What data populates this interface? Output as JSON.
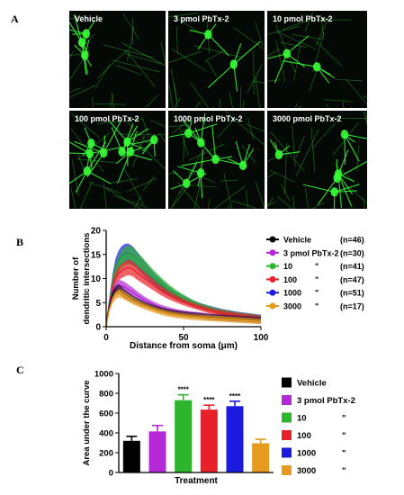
{
  "figure": {
    "panel_a": "A",
    "panel_b": "B",
    "panel_c": "C"
  },
  "micrographs": [
    "Vehicle",
    "3 pmol PbTx-2",
    "10 pmol PbTx-2",
    "100 pmol PbTx-2",
    "1000 pmol PbTx-2",
    "3000 pmol PbTx-2"
  ],
  "colors": {
    "vehicle": "#000000",
    "p3": "#b428d8",
    "p10": "#2db52d",
    "p100": "#e8202a",
    "p1000": "#1b1be0",
    "p3000": "#e69a1e",
    "neuron": "#38ff38"
  },
  "chart_data": [
    {
      "type": "line",
      "xlabel": "Distance from soma (μm)",
      "ylabel": "Number of dendritic intersections",
      "xlim": [
        0,
        100
      ],
      "ylim": [
        0,
        20
      ],
      "xticks": [
        "0",
        "50",
        "100"
      ],
      "yticks": [
        "0",
        "5",
        "10",
        "15",
        "20"
      ],
      "x": [
        0,
        2,
        4,
        6,
        8,
        10,
        12,
        14,
        16,
        18,
        20,
        25,
        30,
        35,
        40,
        45,
        50,
        55,
        60,
        65,
        70,
        75,
        80,
        85,
        90,
        95,
        100
      ],
      "series": [
        {
          "name": "Vehicle",
          "n": "(n=46)",
          "values": [
            0,
            4,
            6.5,
            7.5,
            7.8,
            7.4,
            6.8,
            6.4,
            6,
            5.6,
            5.3,
            4.6,
            4,
            3.5,
            3.1,
            2.8,
            2.6,
            2.4,
            2.3,
            2.1,
            2,
            1.9,
            1.8,
            1.7,
            1.6,
            1.5,
            1.4
          ]
        },
        {
          "name": "3 pmol PbTx-2",
          "n": "(n=30)",
          "values": [
            0,
            4.5,
            7,
            8,
            8.6,
            8.5,
            8.2,
            7.8,
            7.4,
            7,
            6.5,
            5.5,
            4.7,
            4,
            3.5,
            3.1,
            2.8,
            2.6,
            2.4,
            2.2,
            2,
            1.9,
            1.8,
            1.7,
            1.6,
            1.5,
            1.4
          ]
        },
        {
          "name": "10",
          "n": "(n=41)",
          "values": [
            0,
            5,
            9,
            11.5,
            13,
            14,
            14.6,
            14.9,
            14.8,
            14.4,
            13.8,
            12.2,
            10.6,
            9.2,
            7.9,
            6.8,
            5.9,
            5.1,
            4.4,
            3.9,
            3.4,
            3,
            2.7,
            2.4,
            2.2,
            2,
            1.8
          ]
        },
        {
          "name": "100",
          "n": "(n=47)",
          "values": [
            0,
            4.5,
            8,
            10,
            11,
            11.6,
            12,
            12.3,
            12.2,
            11.8,
            11.2,
            10,
            8.8,
            7.6,
            6.6,
            5.8,
            5.1,
            4.5,
            4,
            3.5,
            3.1,
            2.8,
            2.5,
            2.3,
            2.1,
            1.9,
            1.7
          ]
        },
        {
          "name": "1000",
          "n": "(n=51)",
          "values": [
            0,
            5,
            9.5,
            12.5,
            14,
            14.8,
            15.2,
            15.3,
            15,
            14.5,
            13.8,
            12,
            10.2,
            8.8,
            7.5,
            6.5,
            5.7,
            5,
            4.4,
            3.9,
            3.5,
            3.1,
            2.8,
            2.5,
            2.3,
            2.1,
            1.9
          ]
        },
        {
          "name": "3000",
          "n": "(n=17)",
          "values": [
            0,
            3.5,
            5.5,
            6.5,
            7,
            6.8,
            6.4,
            6,
            5.6,
            5.2,
            4.9,
            4.2,
            3.6,
            3.1,
            2.7,
            2.4,
            2.2,
            2,
            1.9,
            1.8,
            1.7,
            1.6,
            1.5,
            1.4,
            1.3,
            1.2,
            1.1
          ]
        }
      ]
    },
    {
      "type": "bar",
      "xlabel": "Treatment",
      "ylabel": "Area under the curve",
      "ylim": [
        0,
        1000
      ],
      "yticks": [
        "0",
        "200",
        "400",
        "600",
        "800",
        "1000"
      ],
      "categories": [
        "Vehicle",
        "3 pmol PbTx-2",
        "10",
        "100",
        "1000",
        "3000"
      ],
      "values": [
        320,
        415,
        730,
        635,
        670,
        295
      ],
      "errors": [
        45,
        60,
        55,
        45,
        50,
        40
      ],
      "significance": [
        "",
        "",
        "****",
        "****",
        "****",
        ""
      ],
      "legend_ditto": "\""
    }
  ]
}
